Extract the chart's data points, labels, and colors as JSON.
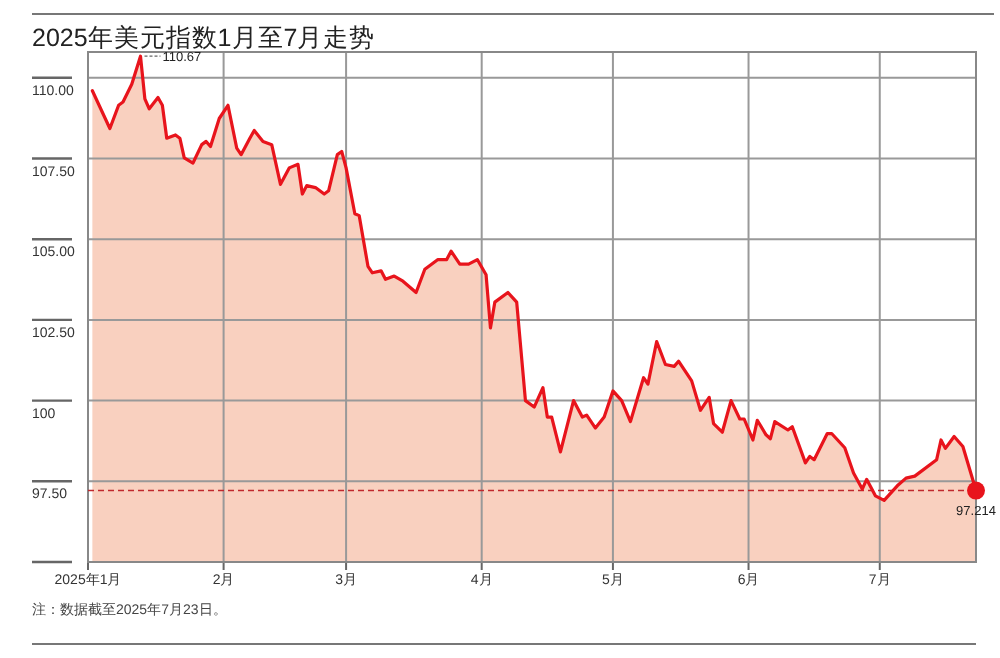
{
  "chart_data": {
    "type": "area",
    "title": "2025年美元指数1月至7月走势",
    "x": [
      "2025-01-02",
      "2025-01-06",
      "2025-01-08",
      "2025-01-09",
      "2025-01-11",
      "2025-01-13",
      "2025-01-14",
      "2025-01-15",
      "2025-01-17",
      "2025-01-18",
      "2025-01-19",
      "2025-01-21",
      "2025-01-22",
      "2025-01-23",
      "2025-01-25",
      "2025-01-27",
      "2025-01-28",
      "2025-01-29",
      "2025-01-31",
      "2025-02-02",
      "2025-02-04",
      "2025-02-05",
      "2025-02-07",
      "2025-02-08",
      "2025-02-10",
      "2025-02-12",
      "2025-02-14",
      "2025-02-16",
      "2025-02-18",
      "2025-02-19",
      "2025-02-20",
      "2025-02-22",
      "2025-02-24",
      "2025-02-25",
      "2025-02-27",
      "2025-02-28",
      "2025-03-01",
      "2025-03-03",
      "2025-03-04",
      "2025-03-06",
      "2025-03-07",
      "2025-03-09",
      "2025-03-10",
      "2025-03-12",
      "2025-03-14",
      "2025-03-17",
      "2025-03-19",
      "2025-03-22",
      "2025-03-24",
      "2025-03-25",
      "2025-03-27",
      "2025-03-29",
      "2025-03-31",
      "2025-04-02",
      "2025-04-03",
      "2025-04-04",
      "2025-04-07",
      "2025-04-09",
      "2025-04-11",
      "2025-04-13",
      "2025-04-15",
      "2025-04-16",
      "2025-04-17",
      "2025-04-19",
      "2025-04-22",
      "2025-04-24",
      "2025-04-25",
      "2025-04-27",
      "2025-04-29",
      "2025-05-01",
      "2025-05-03",
      "2025-05-05",
      "2025-05-08",
      "2025-05-09",
      "2025-05-11",
      "2025-05-13",
      "2025-05-15",
      "2025-05-16",
      "2025-05-19",
      "2025-05-21",
      "2025-05-23",
      "2025-05-24",
      "2025-05-26",
      "2025-05-28",
      "2025-05-30",
      "2025-05-31",
      "2025-06-02",
      "2025-06-03",
      "2025-06-05",
      "2025-06-06",
      "2025-06-07",
      "2025-06-10",
      "2025-06-11",
      "2025-06-14",
      "2025-06-15",
      "2025-06-16",
      "2025-06-19",
      "2025-06-20",
      "2025-06-23",
      "2025-06-25",
      "2025-06-27",
      "2025-06-28",
      "2025-06-30",
      "2025-07-02",
      "2025-07-05",
      "2025-07-07",
      "2025-07-09",
      "2025-07-14",
      "2025-07-15",
      "2025-07-16",
      "2025-07-18",
      "2025-07-20",
      "2025-07-23"
    ],
    "values": [
      109.6,
      108.43,
      109.15,
      109.25,
      109.8,
      110.67,
      109.35,
      109.04,
      109.39,
      109.15,
      108.13,
      108.23,
      108.13,
      107.52,
      107.36,
      107.93,
      108.03,
      107.87,
      108.74,
      109.15,
      107.82,
      107.62,
      108.13,
      108.37,
      108.03,
      107.93,
      106.7,
      107.21,
      107.32,
      106.4,
      106.66,
      106.6,
      106.4,
      106.5,
      107.62,
      107.72,
      107.21,
      105.79,
      105.73,
      104.16,
      103.96,
      104.02,
      103.76,
      103.86,
      103.7,
      103.35,
      104.07,
      104.37,
      104.37,
      104.63,
      104.23,
      104.23,
      104.37,
      103.9,
      102.25,
      103.05,
      103.35,
      103.05,
      100.0,
      99.8,
      100.4,
      99.49,
      99.49,
      98.41,
      100.0,
      99.49,
      99.55,
      99.15,
      99.49,
      100.3,
      100.0,
      99.35,
      100.71,
      100.51,
      101.83,
      101.12,
      101.06,
      101.22,
      100.61,
      99.7,
      100.1,
      99.29,
      99.02,
      100.0,
      99.43,
      99.43,
      98.78,
      99.39,
      98.94,
      98.82,
      99.35,
      99.09,
      99.19,
      98.07,
      98.27,
      98.17,
      98.98,
      98.98,
      98.54,
      97.76,
      97.26,
      97.56,
      97.05,
      96.91,
      97.36,
      97.6,
      97.66,
      98.17,
      98.78,
      98.52,
      98.89,
      98.58,
      97.214
    ],
    "color": "#e8141c",
    "xlim": [
      "2025-01-01",
      "2025-07-23"
    ],
    "xticks": [
      {
        "value": "2025-01-01",
        "label": "2025年1月"
      },
      {
        "value": "2025-02-01",
        "label": "2月"
      },
      {
        "value": "2025-03-01",
        "label": "3月"
      },
      {
        "value": "2025-04-01",
        "label": "4月"
      },
      {
        "value": "2025-05-01",
        "label": "5月"
      },
      {
        "value": "2025-06-01",
        "label": "6月"
      },
      {
        "value": "2025-07-01",
        "label": "7月"
      }
    ],
    "ylim": [
      95,
      110.8
    ],
    "yticks": [
      {
        "value": 95,
        "label": null
      },
      {
        "value": 97.5,
        "label": "97.50"
      },
      100,
      {
        "value": 102.5,
        "label": "102.50"
      },
      {
        "value": 105,
        "label": "105.00"
      },
      {
        "value": 107.5,
        "label": "107.50"
      },
      {
        "value": 110,
        "label": "110.00"
      }
    ],
    "grid": true,
    "ref_lines": [
      {
        "axis": "y",
        "value": 97.214,
        "color": "#c0282d",
        "line_style": "dashed"
      }
    ],
    "annotations": [
      {
        "text": "110.67",
        "x": "2025-01-13",
        "y": 110.67
      },
      {
        "text": "97.214",
        "x": "2025-07-23",
        "y": 97.214
      },
      "注：数据截至2025年7月23日。"
    ]
  }
}
